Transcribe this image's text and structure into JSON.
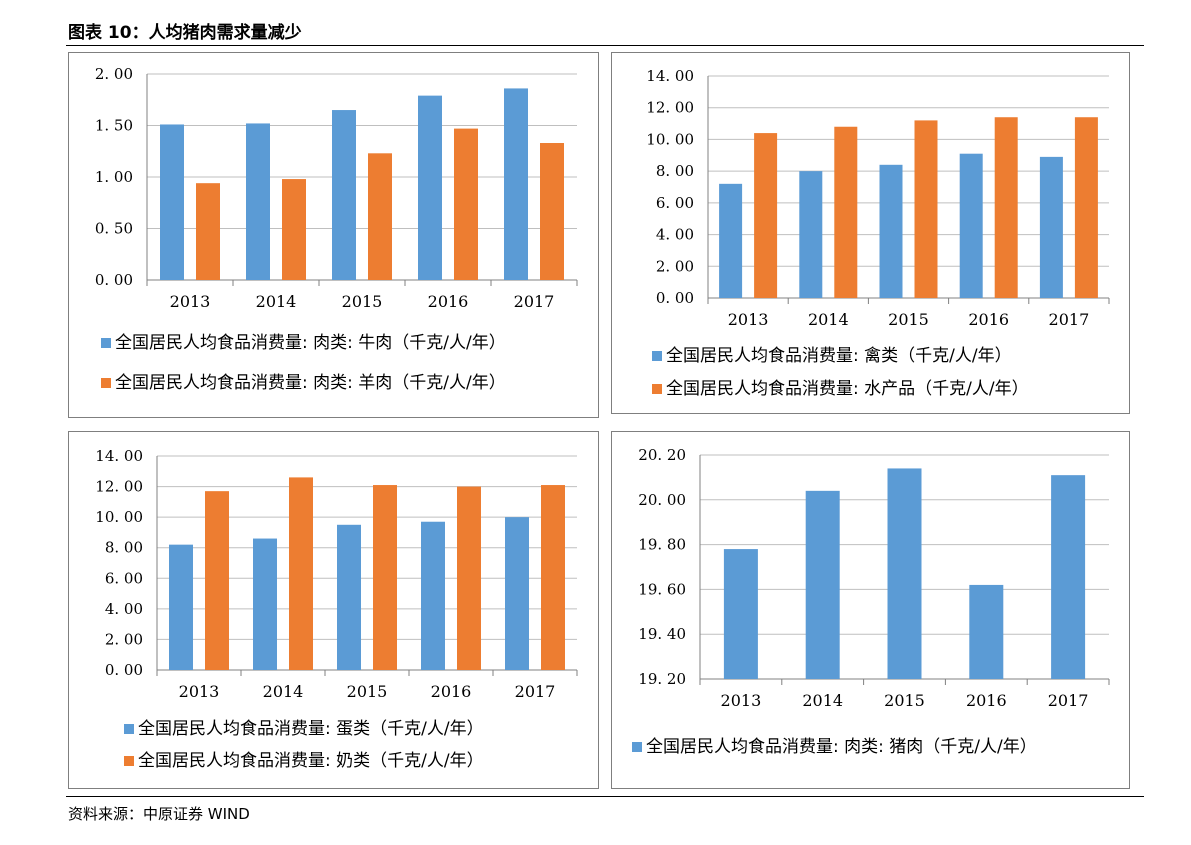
{
  "title": "图表 10：人均猪肉需求量减少",
  "source": "资料来源：中原证券 WIND",
  "colors": {
    "blue": "#5B9BD5",
    "orange": "#ED7D31",
    "grid": "#BFBFBF",
    "axis": "#808080"
  },
  "chart_data": [
    {
      "type": "bar",
      "categories": [
        "2013",
        "2014",
        "2015",
        "2016",
        "2017"
      ],
      "ylim": [
        0,
        2
      ],
      "yticks": [
        "0. 00",
        "0. 50",
        "1. 00",
        "1. 50",
        "2. 00"
      ],
      "grid": true,
      "legend_position": "bottom",
      "series": [
        {
          "name": "全国居民人均食品消费量: 肉类: 牛肉（千克/人/年）",
          "color": "#5B9BD5",
          "values": [
            1.51,
            1.52,
            1.65,
            1.79,
            1.86
          ]
        },
        {
          "name": "全国居民人均食品消费量: 肉类: 羊肉（千克/人/年）",
          "color": "#ED7D31",
          "values": [
            0.94,
            0.98,
            1.23,
            1.47,
            1.33
          ]
        }
      ]
    },
    {
      "type": "bar",
      "categories": [
        "2013",
        "2014",
        "2015",
        "2016",
        "2017"
      ],
      "ylim": [
        0,
        14
      ],
      "yticks": [
        "0. 00",
        "2. 00",
        "4. 00",
        "6. 00",
        "8. 00",
        "10. 00",
        "12. 00",
        "14. 00"
      ],
      "grid": true,
      "legend_position": "bottom",
      "series": [
        {
          "name": "全国居民人均食品消费量: 禽类（千克/人/年）",
          "color": "#5B9BD5",
          "values": [
            7.2,
            8.0,
            8.4,
            9.1,
            8.9
          ]
        },
        {
          "name": "全国居民人均食品消费量: 水产品（千克/人/年）",
          "color": "#ED7D31",
          "values": [
            10.4,
            10.8,
            11.2,
            11.4,
            11.4
          ]
        }
      ]
    },
    {
      "type": "bar",
      "categories": [
        "2013",
        "2014",
        "2015",
        "2016",
        "2017"
      ],
      "ylim": [
        0,
        14
      ],
      "yticks": [
        "0. 00",
        "2. 00",
        "4. 00",
        "6. 00",
        "8. 00",
        "10. 00",
        "12. 00",
        "14. 00"
      ],
      "grid": true,
      "legend_position": "bottom",
      "series": [
        {
          "name": "全国居民人均食品消费量: 蛋类（千克/人/年）",
          "color": "#5B9BD5",
          "values": [
            8.2,
            8.6,
            9.5,
            9.7,
            10.0
          ]
        },
        {
          "name": "全国居民人均食品消费量: 奶类（千克/人/年）",
          "color": "#ED7D31",
          "values": [
            11.7,
            12.6,
            12.1,
            12.0,
            12.1
          ]
        }
      ]
    },
    {
      "type": "bar",
      "categories": [
        "2013",
        "2014",
        "2015",
        "2016",
        "2017"
      ],
      "ylim": [
        19.2,
        20.2
      ],
      "yticks": [
        "19. 20",
        "19. 40",
        "19. 60",
        "19. 80",
        "20. 00",
        "20. 20"
      ],
      "grid": true,
      "legend_position": "bottom",
      "series": [
        {
          "name": "全国居民人均食品消费量: 肉类: 猪肉（千克/人/年）",
          "color": "#5B9BD5",
          "values": [
            19.78,
            20.04,
            20.14,
            19.62,
            20.11
          ]
        }
      ]
    }
  ]
}
